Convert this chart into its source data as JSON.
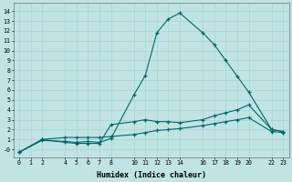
{
  "xlabel": "Humidex (Indice chaleur)",
  "bg_color": "#c0e4e4",
  "grid_color": "#a8d4d4",
  "line_color": "#006868",
  "xlim": [
    -0.5,
    23.5
  ],
  "ylim": [
    -0.8,
    14.8
  ],
  "xticks": [
    0,
    1,
    2,
    4,
    5,
    6,
    7,
    8,
    10,
    11,
    12,
    13,
    14,
    16,
    17,
    18,
    19,
    20,
    22,
    23
  ],
  "yticks": [
    0,
    1,
    2,
    3,
    4,
    5,
    6,
    7,
    8,
    9,
    10,
    11,
    12,
    13,
    14
  ],
  "ytick_labels": [
    "-0",
    "1",
    "2",
    "3",
    "4",
    "5",
    "6",
    "7",
    "8",
    "9",
    "10",
    "11",
    "12",
    "13",
    "14"
  ],
  "series1_x": [
    0,
    2,
    4,
    5,
    6,
    7,
    8,
    10,
    11,
    12,
    13,
    14,
    16,
    17,
    18,
    19,
    20,
    22,
    23
  ],
  "series1_y": [
    -0.3,
    0.9,
    0.8,
    0.7,
    0.8,
    0.7,
    1.1,
    5.5,
    7.5,
    11.8,
    13.2,
    13.8,
    11.8,
    10.6,
    9.0,
    7.4,
    5.8,
    2.0,
    1.8
  ],
  "series2_x": [
    0,
    2,
    4,
    5,
    6,
    7,
    8,
    10,
    11,
    12,
    13,
    14,
    16,
    17,
    18,
    19,
    20,
    22,
    23
  ],
  "series2_y": [
    -0.3,
    1.0,
    0.7,
    0.6,
    0.6,
    0.6,
    2.5,
    2.8,
    3.0,
    2.8,
    2.8,
    2.7,
    3.0,
    3.4,
    3.7,
    4.0,
    4.5,
    2.0,
    1.8
  ],
  "series3_x": [
    0,
    2,
    4,
    5,
    6,
    7,
    8,
    10,
    11,
    12,
    13,
    14,
    16,
    17,
    18,
    19,
    20,
    22,
    23
  ],
  "series3_y": [
    -0.3,
    1.0,
    1.2,
    1.2,
    1.2,
    1.2,
    1.3,
    1.5,
    1.7,
    1.9,
    2.0,
    2.1,
    2.4,
    2.6,
    2.8,
    3.0,
    3.2,
    1.8,
    1.7
  ]
}
